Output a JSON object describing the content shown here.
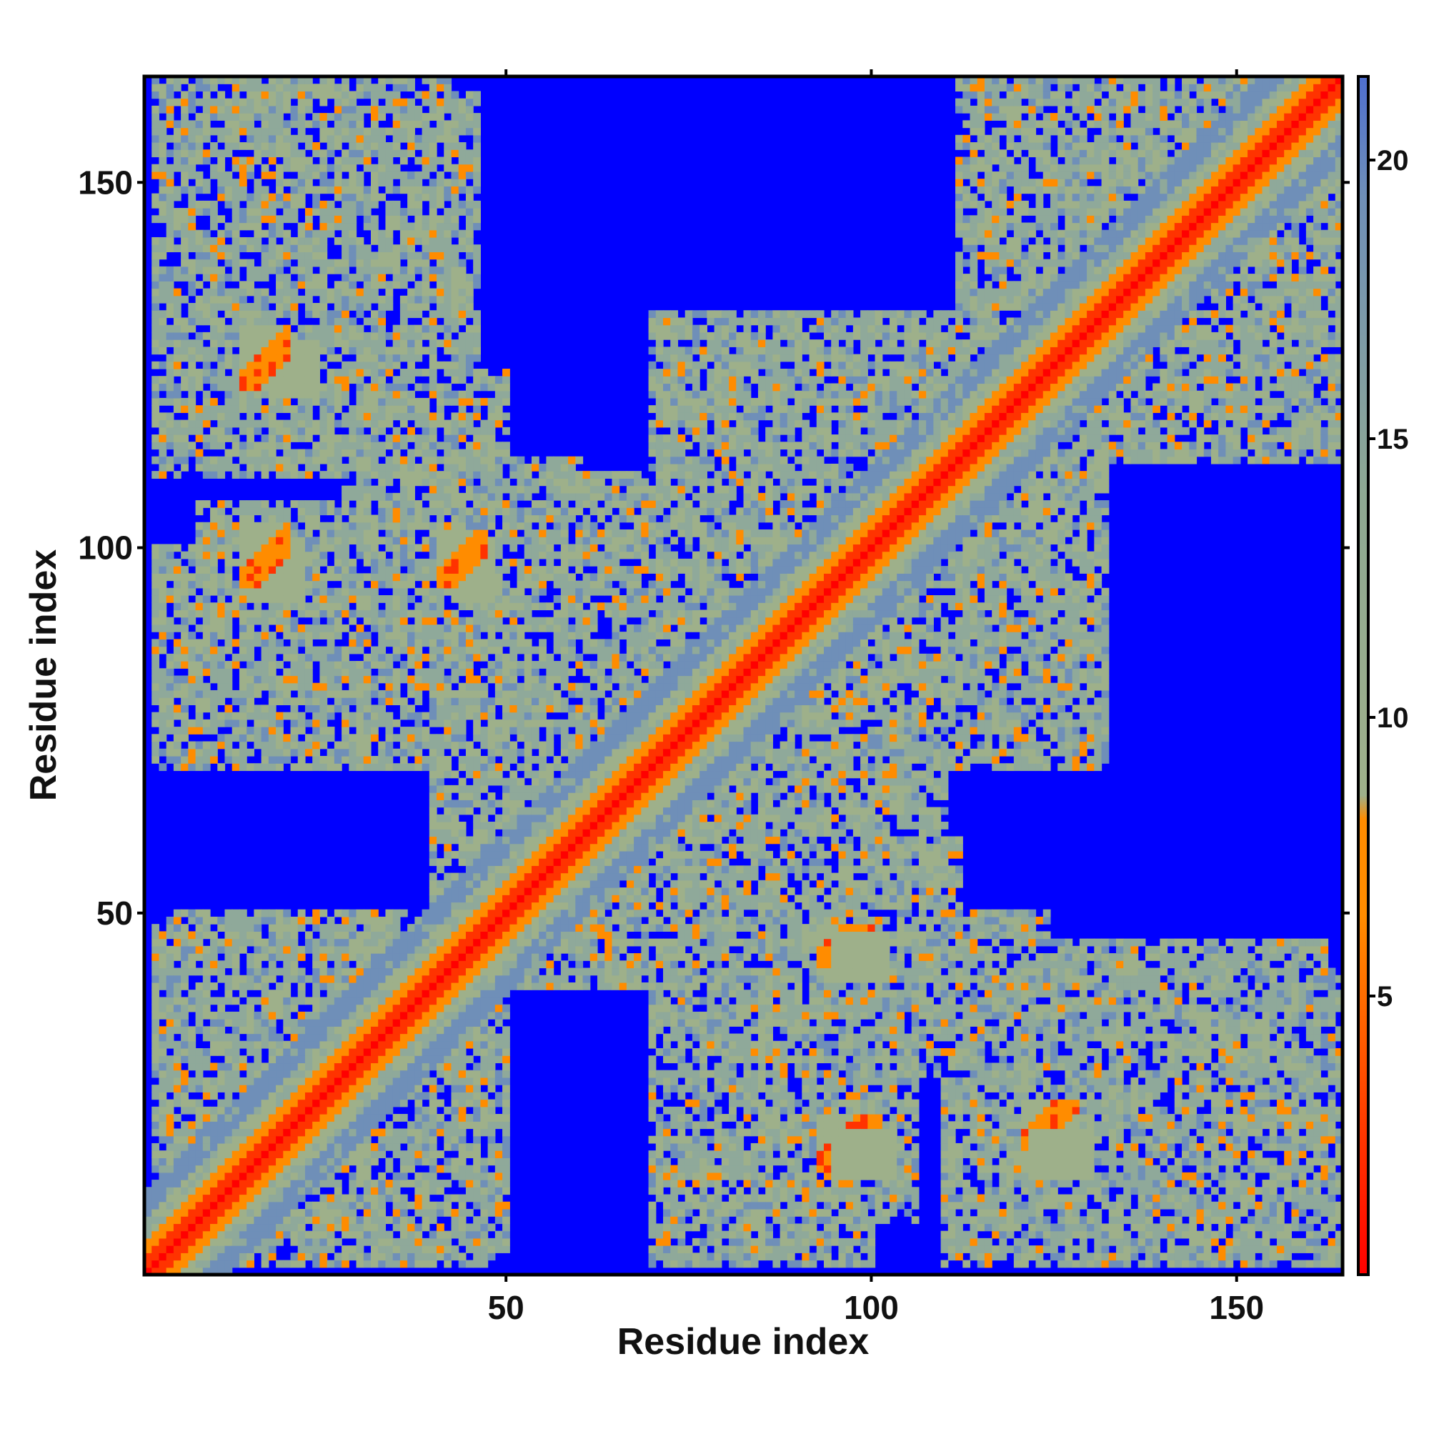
{
  "chart_data": {
    "type": "heatmap",
    "title": "",
    "xlabel": "Residue index",
    "ylabel": "Residue index",
    "x_range": [
      1,
      164
    ],
    "y_range": [
      1,
      164
    ],
    "xticks": [
      50,
      100,
      150
    ],
    "yticks": [
      50,
      100,
      150
    ],
    "colorbar": {
      "ticks": [
        5,
        10,
        15,
        20
      ],
      "range": [
        0,
        21.5
      ],
      "colors": [
        "#ff0000",
        "#ff8c00",
        "#9eb08a",
        "#6f8fb8",
        "#0000ff"
      ],
      "position": "right"
    },
    "grid": false,
    "contact_clusters": [
      {
        "name": "diagonal",
        "x_range": [
          1,
          164
        ],
        "note": "distance ~0 along x = y"
      },
      {
        "i": [
          14,
          20
        ],
        "j": [
          122,
          130
        ]
      },
      {
        "i": [
          14,
          20
        ],
        "j": [
          95,
          103
        ]
      },
      {
        "i": [
          41,
          47
        ],
        "j": [
          95,
          102
        ]
      },
      {
        "i": [
          93,
          100
        ],
        "j": [
          43,
          48
        ]
      },
      {
        "i": [
          93,
          101
        ],
        "j": [
          15,
          22
        ]
      },
      {
        "i": [
          121,
          128
        ],
        "j": [
          18,
          24
        ]
      },
      {
        "i": [
          134,
          146
        ],
        "j": [
          132,
          152
        ]
      },
      {
        "i": [
          22,
          44
        ],
        "j": [
          26,
          44
        ]
      },
      {
        "i": [
          60,
          90
        ],
        "j": [
          55,
          90
        ]
      },
      {
        "i": [
          98,
          128
        ],
        "j": [
          95,
          128
        ]
      }
    ]
  }
}
